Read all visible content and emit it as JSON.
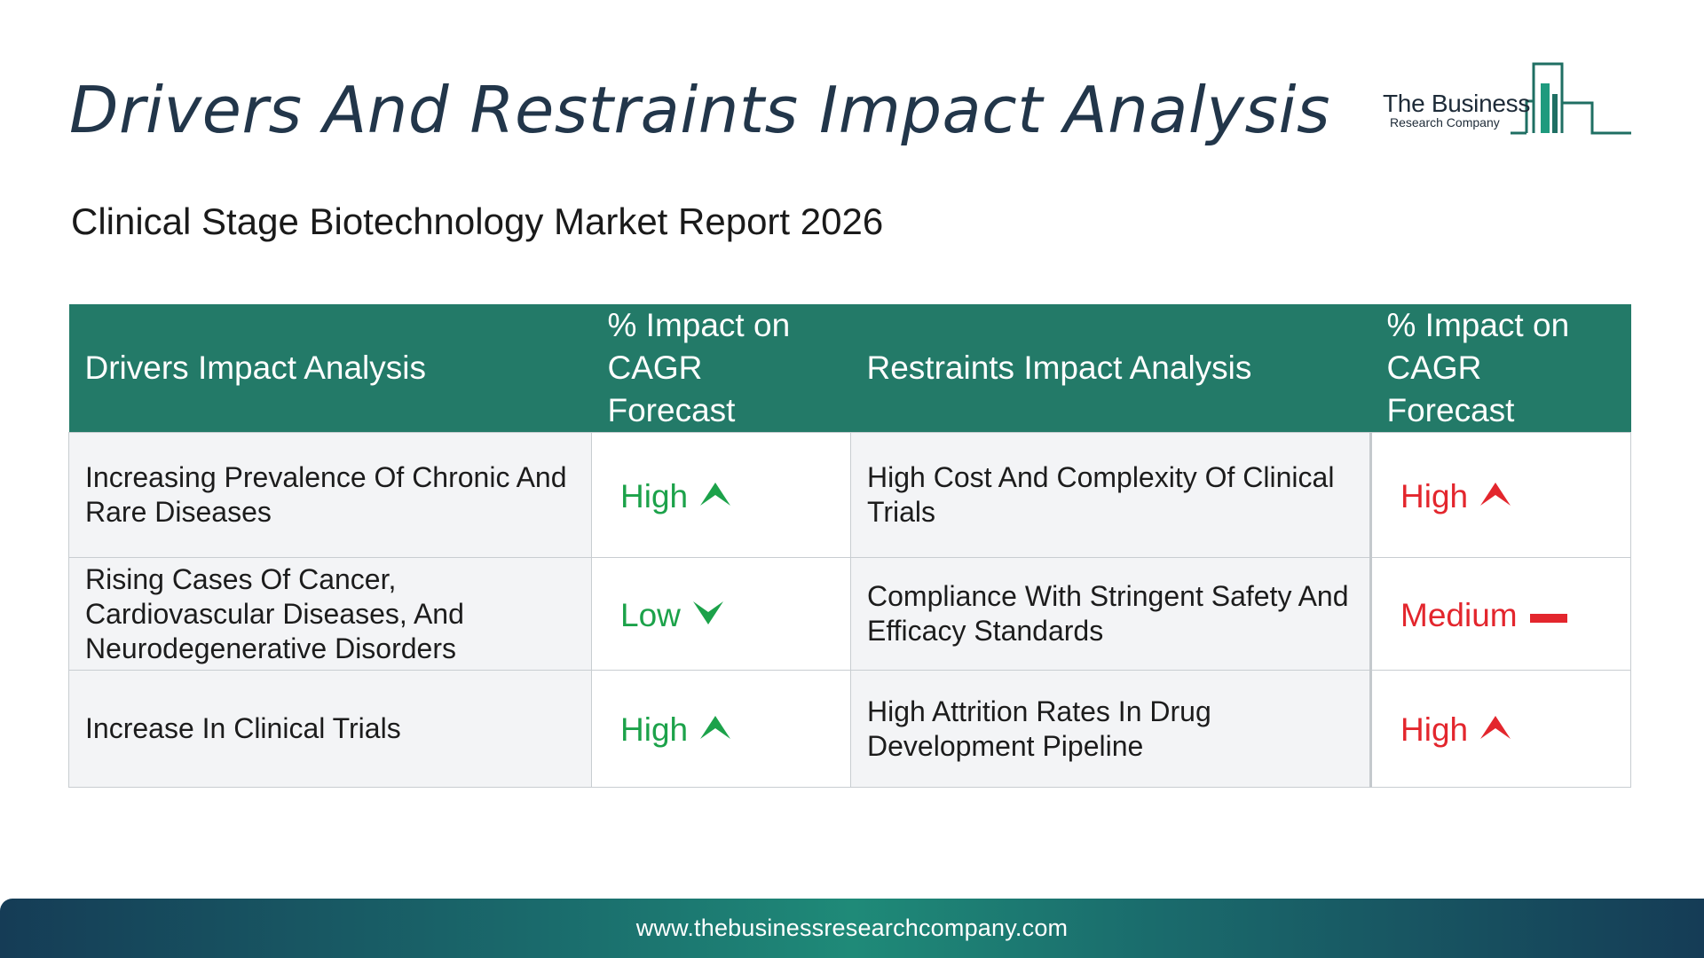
{
  "title": "Drivers And Restraints Impact Analysis",
  "subtitle": "Clinical Stage Biotechnology Market Report 2026",
  "logo": {
    "name": "The Business",
    "sub": "Research Company"
  },
  "table": {
    "headers": {
      "drivers": "Drivers Impact Analysis",
      "drivers_impact": "% Impact on CAGR Forecast",
      "restraints": "Restraints Impact Analysis",
      "restraints_impact": "% Impact on CAGR Forecast"
    },
    "rows": [
      {
        "driver": "Increasing Prevalence Of Chronic And Rare Diseases",
        "driver_impact": "High",
        "driver_icon": "arrow-up-icon",
        "restraint": "High Cost And Complexity Of Clinical Trials",
        "restraint_impact": "High",
        "restraint_icon": "arrow-up-icon"
      },
      {
        "driver": "Rising Cases Of Cancer, Cardiovascular Diseases, And Neurodegenerative Disorders",
        "driver_impact": "Low",
        "driver_icon": "arrow-down-icon",
        "restraint": "Compliance With Stringent Safety And Efficacy Standards",
        "restraint_impact": "Medium",
        "restraint_icon": "dash-icon"
      },
      {
        "driver": "Increase In Clinical Trials",
        "driver_impact": "High",
        "driver_icon": "arrow-up-icon",
        "restraint": "High Attrition Rates In Drug Development Pipeline",
        "restraint_impact": "High",
        "restraint_icon": "arrow-up-icon"
      }
    ]
  },
  "footer": {
    "url": "www.thebusinessresearchcompany.com"
  },
  "colors": {
    "header_bg": "#237a68",
    "driver_accent": "#1ca24a",
    "restraint_accent": "#e3262d",
    "title": "#22364a"
  }
}
